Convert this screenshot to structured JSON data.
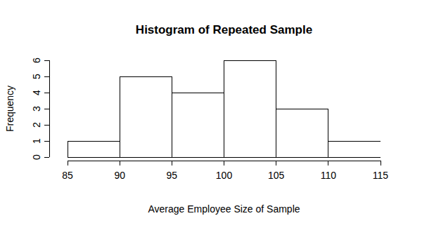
{
  "chart_data": {
    "type": "histogram",
    "title": "Histogram of Repeated Sample",
    "x_label": "Average Employee Size of Sample",
    "y_label": "Frequency",
    "bins": [
      85,
      90,
      95,
      100,
      105,
      110,
      115
    ],
    "values": [
      1,
      5,
      4,
      6,
      3,
      1
    ],
    "color": "#ffffff",
    "xlim": [
      85,
      115
    ],
    "xticks": [
      85,
      90,
      95,
      100,
      105,
      110,
      115
    ],
    "ylim": [
      0,
      6
    ],
    "yticks": [
      0,
      1,
      2,
      3,
      4,
      5,
      6
    ],
    "grid": false
  }
}
